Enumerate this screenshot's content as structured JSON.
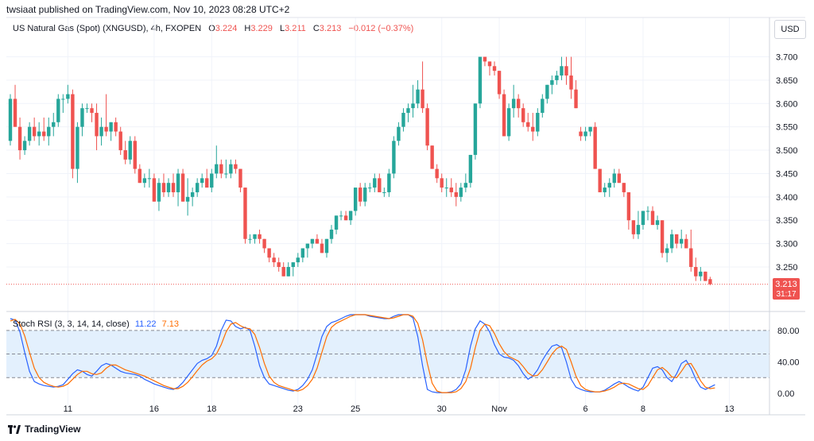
{
  "header": {
    "published": "twsiaat published on TradingView.com, Nov 10, 2023 08:28 UTC+2"
  },
  "legend": {
    "symbol": "US Natural Gas (Spot) (XNGUSD), 4h, FXOPEN",
    "open_label": "O",
    "open": "3.224",
    "high_label": "H",
    "high": "3.229",
    "low_label": "L",
    "low": "3.211",
    "close_label": "C",
    "close": "3.213",
    "change": "−0.012 (−0.37%)"
  },
  "currency": "USD",
  "price_tag": {
    "price": "3.213",
    "countdown": "31:17"
  },
  "stoch": {
    "label": "Stoch RSI (3, 3, 14, 14, close)",
    "k": "11.22",
    "d": "7.13"
  },
  "brand": {
    "name": "TradingView"
  },
  "colors": {
    "up": "#26a69a",
    "down": "#ef5350",
    "k_line": "#2962ff",
    "d_line": "#ff6d00",
    "band": "#e3f0fd"
  },
  "chart_data": [
    {
      "type": "candlestick",
      "title": "US Natural Gas (Spot) (XNGUSD), 4h, FXOPEN",
      "y_ticks": [
        "3.250",
        "3.300",
        "3.350",
        "3.400",
        "3.450",
        "3.500",
        "3.550",
        "3.600",
        "3.650",
        "3.700"
      ],
      "ylim": [
        3.17,
        3.74
      ],
      "x_ticks": [
        {
          "label": "11",
          "i": 12
        },
        {
          "label": "16",
          "i": 30
        },
        {
          "label": "18",
          "i": 42
        },
        {
          "label": "23",
          "i": 60
        },
        {
          "label": "25",
          "i": 72
        },
        {
          "label": "30",
          "i": 90
        },
        {
          "label": "Nov",
          "i": 102
        },
        {
          "label": "6",
          "i": 120
        },
        {
          "label": "8",
          "i": 132
        },
        {
          "label": "13",
          "i": 150
        }
      ],
      "ohlc": [
        [
          3.52,
          3.62,
          3.51,
          3.61
        ],
        [
          3.61,
          3.64,
          3.55,
          3.55
        ],
        [
          3.55,
          3.57,
          3.48,
          3.5
        ],
        [
          3.5,
          3.53,
          3.49,
          3.52
        ],
        [
          3.52,
          3.56,
          3.51,
          3.55
        ],
        [
          3.55,
          3.57,
          3.52,
          3.53
        ],
        [
          3.53,
          3.56,
          3.51,
          3.54
        ],
        [
          3.54,
          3.57,
          3.52,
          3.53
        ],
        [
          3.53,
          3.57,
          3.51,
          3.55
        ],
        [
          3.55,
          3.58,
          3.53,
          3.56
        ],
        [
          3.56,
          3.62,
          3.55,
          3.61
        ],
        [
          3.61,
          3.62,
          3.58,
          3.61
        ],
        [
          3.61,
          3.64,
          3.6,
          3.62
        ],
        [
          3.62,
          3.63,
          3.44,
          3.46
        ],
        [
          3.46,
          3.56,
          3.43,
          3.55
        ],
        [
          3.55,
          3.6,
          3.53,
          3.59
        ],
        [
          3.59,
          3.6,
          3.58,
          3.59
        ],
        [
          3.59,
          3.6,
          3.56,
          3.58
        ],
        [
          3.58,
          3.6,
          3.5,
          3.53
        ],
        [
          3.53,
          3.57,
          3.51,
          3.55
        ],
        [
          3.55,
          3.62,
          3.53,
          3.54
        ],
        [
          3.54,
          3.56,
          3.52,
          3.56
        ],
        [
          3.56,
          3.57,
          3.53,
          3.54
        ],
        [
          3.54,
          3.55,
          3.49,
          3.5
        ],
        [
          3.5,
          3.52,
          3.47,
          3.48
        ],
        [
          3.48,
          3.53,
          3.47,
          3.52
        ],
        [
          3.52,
          3.53,
          3.45,
          3.46
        ],
        [
          3.46,
          3.47,
          3.43,
          3.43
        ],
        [
          3.43,
          3.45,
          3.42,
          3.44
        ],
        [
          3.44,
          3.46,
          3.42,
          3.44
        ],
        [
          3.44,
          3.45,
          3.39,
          3.39
        ],
        [
          3.39,
          3.44,
          3.37,
          3.43
        ],
        [
          3.43,
          3.45,
          3.4,
          3.41
        ],
        [
          3.41,
          3.44,
          3.4,
          3.43
        ],
        [
          3.43,
          3.45,
          3.4,
          3.41
        ],
        [
          3.41,
          3.46,
          3.38,
          3.45
        ],
        [
          3.45,
          3.46,
          3.39,
          3.39
        ],
        [
          3.39,
          3.44,
          3.36,
          3.4
        ],
        [
          3.4,
          3.42,
          3.38,
          3.41
        ],
        [
          3.41,
          3.44,
          3.4,
          3.43
        ],
        [
          3.43,
          3.45,
          3.42,
          3.44
        ],
        [
          3.44,
          3.46,
          3.42,
          3.42
        ],
        [
          3.42,
          3.46,
          3.41,
          3.45
        ],
        [
          3.45,
          3.51,
          3.44,
          3.47
        ],
        [
          3.47,
          3.48,
          3.44,
          3.45
        ],
        [
          3.45,
          3.48,
          3.44,
          3.45
        ],
        [
          3.45,
          3.48,
          3.44,
          3.47
        ],
        [
          3.47,
          3.48,
          3.45,
          3.46
        ],
        [
          3.46,
          3.46,
          3.41,
          3.42
        ],
        [
          3.42,
          3.42,
          3.3,
          3.31
        ],
        [
          3.31,
          3.32,
          3.3,
          3.31
        ],
        [
          3.31,
          3.32,
          3.3,
          3.32
        ],
        [
          3.32,
          3.33,
          3.3,
          3.31
        ],
        [
          3.31,
          3.31,
          3.28,
          3.29
        ],
        [
          3.29,
          3.29,
          3.26,
          3.27
        ],
        [
          3.27,
          3.28,
          3.25,
          3.26
        ],
        [
          3.26,
          3.27,
          3.24,
          3.25
        ],
        [
          3.25,
          3.26,
          3.23,
          3.23
        ],
        [
          3.23,
          3.26,
          3.23,
          3.25
        ],
        [
          3.25,
          3.26,
          3.23,
          3.26
        ],
        [
          3.26,
          3.28,
          3.25,
          3.27
        ],
        [
          3.27,
          3.29,
          3.26,
          3.29
        ],
        [
          3.29,
          3.3,
          3.27,
          3.3
        ],
        [
          3.3,
          3.31,
          3.29,
          3.31
        ],
        [
          3.31,
          3.32,
          3.3,
          3.3
        ],
        [
          3.3,
          3.31,
          3.28,
          3.28
        ],
        [
          3.28,
          3.31,
          3.27,
          3.31
        ],
        [
          3.31,
          3.34,
          3.3,
          3.33
        ],
        [
          3.33,
          3.36,
          3.32,
          3.36
        ],
        [
          3.36,
          3.37,
          3.35,
          3.36
        ],
        [
          3.36,
          3.37,
          3.35,
          3.35
        ],
        [
          3.35,
          3.37,
          3.34,
          3.37
        ],
        [
          3.37,
          3.42,
          3.36,
          3.42
        ],
        [
          3.42,
          3.43,
          3.38,
          3.39
        ],
        [
          3.39,
          3.43,
          3.38,
          3.42
        ],
        [
          3.42,
          3.43,
          3.41,
          3.42
        ],
        [
          3.42,
          3.45,
          3.41,
          3.44
        ],
        [
          3.44,
          3.45,
          3.41,
          3.41
        ],
        [
          3.41,
          3.42,
          3.4,
          3.41
        ],
        [
          3.41,
          3.46,
          3.4,
          3.45
        ],
        [
          3.45,
          3.53,
          3.44,
          3.52
        ],
        [
          3.52,
          3.56,
          3.51,
          3.55
        ],
        [
          3.55,
          3.59,
          3.54,
          3.58
        ],
        [
          3.58,
          3.6,
          3.56,
          3.59
        ],
        [
          3.59,
          3.64,
          3.57,
          3.6
        ],
        [
          3.6,
          3.65,
          3.59,
          3.63
        ],
        [
          3.63,
          3.69,
          3.58,
          3.59
        ],
        [
          3.59,
          3.6,
          3.5,
          3.51
        ],
        [
          3.51,
          3.51,
          3.46,
          3.46
        ],
        [
          3.46,
          3.47,
          3.43,
          3.44
        ],
        [
          3.44,
          3.45,
          3.41,
          3.42
        ],
        [
          3.42,
          3.44,
          3.4,
          3.42
        ],
        [
          3.42,
          3.44,
          3.4,
          3.41
        ],
        [
          3.41,
          3.43,
          3.38,
          3.4
        ],
        [
          3.4,
          3.43,
          3.39,
          3.42
        ],
        [
          3.42,
          3.45,
          3.41,
          3.43
        ],
        [
          3.43,
          3.49,
          3.42,
          3.49
        ],
        [
          3.49,
          3.6,
          3.48,
          3.6
        ],
        [
          3.6,
          3.7,
          3.59,
          3.7
        ],
        [
          3.7,
          3.7,
          3.68,
          3.69
        ],
        [
          3.69,
          3.69,
          3.66,
          3.68
        ],
        [
          3.68,
          3.69,
          3.66,
          3.67
        ],
        [
          3.67,
          3.67,
          3.61,
          3.62
        ],
        [
          3.62,
          3.63,
          3.53,
          3.53
        ],
        [
          3.53,
          3.6,
          3.52,
          3.59
        ],
        [
          3.59,
          3.64,
          3.57,
          3.61
        ],
        [
          3.61,
          3.62,
          3.57,
          3.59
        ],
        [
          3.59,
          3.6,
          3.55,
          3.56
        ],
        [
          3.56,
          3.58,
          3.54,
          3.55
        ],
        [
          3.55,
          3.58,
          3.52,
          3.54
        ],
        [
          3.54,
          3.59,
          3.53,
          3.58
        ],
        [
          3.58,
          3.62,
          3.57,
          3.61
        ],
        [
          3.61,
          3.64,
          3.6,
          3.64
        ],
        [
          3.64,
          3.66,
          3.62,
          3.65
        ],
        [
          3.65,
          3.67,
          3.64,
          3.66
        ],
        [
          3.66,
          3.7,
          3.65,
          3.68
        ],
        [
          3.68,
          3.7,
          3.64,
          3.66
        ],
        [
          3.66,
          3.7,
          3.61,
          3.63
        ],
        [
          3.63,
          3.65,
          3.59,
          3.59
        ],
        [
          3.54,
          3.55,
          3.52,
          3.53
        ],
        [
          3.53,
          3.55,
          3.52,
          3.54
        ],
        [
          3.54,
          3.55,
          3.53,
          3.55
        ],
        [
          3.55,
          3.56,
          3.46,
          3.46
        ],
        [
          3.46,
          3.46,
          3.41,
          3.41
        ],
        [
          3.41,
          3.43,
          3.4,
          3.42
        ],
        [
          3.42,
          3.44,
          3.4,
          3.43
        ],
        [
          3.43,
          3.46,
          3.42,
          3.45
        ],
        [
          3.45,
          3.46,
          3.43,
          3.43
        ],
        [
          3.43,
          3.43,
          3.4,
          3.41
        ],
        [
          3.41,
          3.41,
          3.33,
          3.35
        ],
        [
          3.35,
          3.35,
          3.31,
          3.32
        ],
        [
          3.32,
          3.37,
          3.31,
          3.34
        ],
        [
          3.34,
          3.37,
          3.33,
          3.37
        ],
        [
          3.37,
          3.38,
          3.35,
          3.37
        ],
        [
          3.37,
          3.38,
          3.34,
          3.34
        ],
        [
          3.34,
          3.36,
          3.33,
          3.35
        ],
        [
          3.35,
          3.35,
          3.27,
          3.28
        ],
        [
          3.28,
          3.3,
          3.26,
          3.29
        ],
        [
          3.29,
          3.33,
          3.28,
          3.32
        ],
        [
          3.32,
          3.32,
          3.29,
          3.3
        ],
        [
          3.3,
          3.33,
          3.29,
          3.31
        ],
        [
          3.31,
          3.32,
          3.29,
          3.29
        ],
        [
          3.29,
          3.33,
          3.24,
          3.25
        ],
        [
          3.25,
          3.27,
          3.22,
          3.23
        ],
        [
          3.23,
          3.25,
          3.22,
          3.24
        ],
        [
          3.24,
          3.24,
          3.22,
          3.22
        ],
        [
          3.224,
          3.229,
          3.211,
          3.213
        ]
      ]
    },
    {
      "type": "line",
      "title": "Stoch RSI (3, 3, 14, 14, close)",
      "y_ticks": [
        "0.00",
        "40.00",
        "80.00"
      ],
      "ylim": [
        -10,
        100
      ],
      "band": [
        20,
        80
      ],
      "mid_line": 50,
      "series": [
        {
          "name": "K",
          "values": [
            95,
            93,
            78,
            52,
            28,
            15,
            12,
            10,
            9,
            8,
            9,
            11,
            18,
            25,
            30,
            28,
            24,
            22,
            28,
            35,
            38,
            36,
            32,
            28,
            26,
            25,
            24,
            22,
            18,
            15,
            12,
            10,
            8,
            6,
            5,
            8,
            14,
            22,
            30,
            38,
            42,
            44,
            48,
            60,
            80,
            93,
            92,
            85,
            82,
            84,
            80,
            60,
            35,
            20,
            12,
            10,
            8,
            6,
            4,
            3,
            5,
            10,
            18,
            30,
            50,
            72,
            85,
            90,
            92,
            95,
            98,
            100,
            100,
            100,
            100,
            98,
            97,
            96,
            95,
            95,
            98,
            100,
            100,
            100,
            96,
            72,
            35,
            5,
            2,
            1,
            1,
            1,
            2,
            5,
            12,
            30,
            60,
            82,
            92,
            88,
            78,
            62,
            50,
            46,
            45,
            42,
            35,
            25,
            18,
            22,
            30,
            42,
            52,
            60,
            62,
            58,
            40,
            18,
            8,
            5,
            3,
            2,
            2,
            2,
            4,
            8,
            12,
            15,
            12,
            8,
            5,
            3,
            8,
            20,
            32,
            34,
            30,
            20,
            15,
            25,
            38,
            42,
            32,
            18,
            8,
            5,
            8,
            11
          ]
        },
        {
          "name": "D",
          "values": [
            92,
            94,
            88,
            73,
            52,
            32,
            20,
            14,
            11,
            9,
            8,
            9,
            12,
            18,
            24,
            28,
            28,
            25,
            24,
            26,
            32,
            36,
            36,
            33,
            30,
            28,
            26,
            24,
            22,
            19,
            16,
            13,
            10,
            8,
            6,
            6,
            9,
            14,
            21,
            29,
            36,
            41,
            44,
            50,
            62,
            78,
            88,
            90,
            86,
            83,
            82,
            75,
            58,
            38,
            22,
            14,
            10,
            8,
            6,
            4,
            3,
            5,
            10,
            18,
            32,
            52,
            72,
            84,
            89,
            92,
            95,
            98,
            100,
            100,
            100,
            99,
            98,
            97,
            96,
            95,
            96,
            98,
            100,
            100,
            98,
            89,
            68,
            38,
            13,
            3,
            1,
            1,
            1,
            2,
            6,
            15,
            32,
            58,
            80,
            88,
            86,
            76,
            63,
            53,
            47,
            44,
            41,
            34,
            26,
            22,
            23,
            30,
            40,
            50,
            57,
            60,
            56,
            40,
            22,
            10,
            5,
            3,
            2,
            2,
            3,
            5,
            8,
            12,
            13,
            12,
            9,
            6,
            5,
            10,
            20,
            30,
            33,
            28,
            21,
            20,
            28,
            37,
            38,
            28,
            16,
            8,
            6,
            7
          ]
        }
      ]
    }
  ]
}
